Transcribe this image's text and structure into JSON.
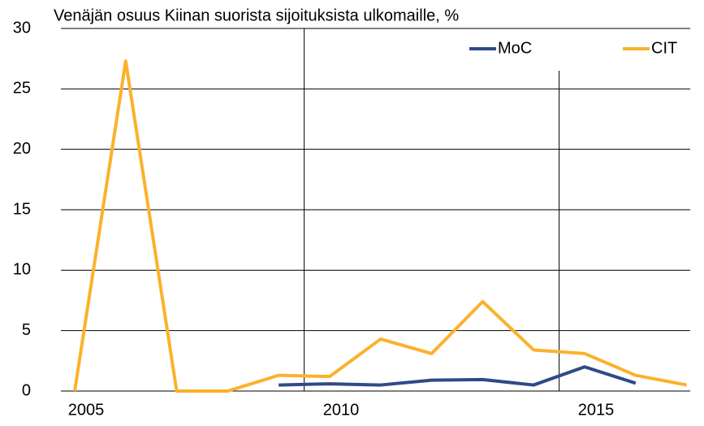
{
  "chart_data": {
    "type": "line",
    "title": "Venäjän osuus Kiinan suorista sijoituksista ulkomaille, %",
    "categories": [
      "2005",
      null,
      null,
      null,
      null,
      "2010",
      null,
      null,
      null,
      null,
      "2015",
      null,
      null
    ],
    "series": [
      {
        "name": "MoC",
        "color": "#2e4a87",
        "values": [
          null,
          null,
          null,
          null,
          0.5,
          0.6,
          0.5,
          0.9,
          0.95,
          0.5,
          2.0,
          0.65,
          null
        ]
      },
      {
        "name": "CIT",
        "color": "#fbb12b",
        "values": [
          0,
          27.3,
          0,
          0,
          1.3,
          1.2,
          4.3,
          3.1,
          7.4,
          3.4,
          3.1,
          1.3,
          0.5
        ]
      }
    ],
    "ylim": [
      0,
      30
    ],
    "yticks": [
      0,
      5,
      10,
      15,
      20,
      25,
      30
    ],
    "grid": true
  }
}
